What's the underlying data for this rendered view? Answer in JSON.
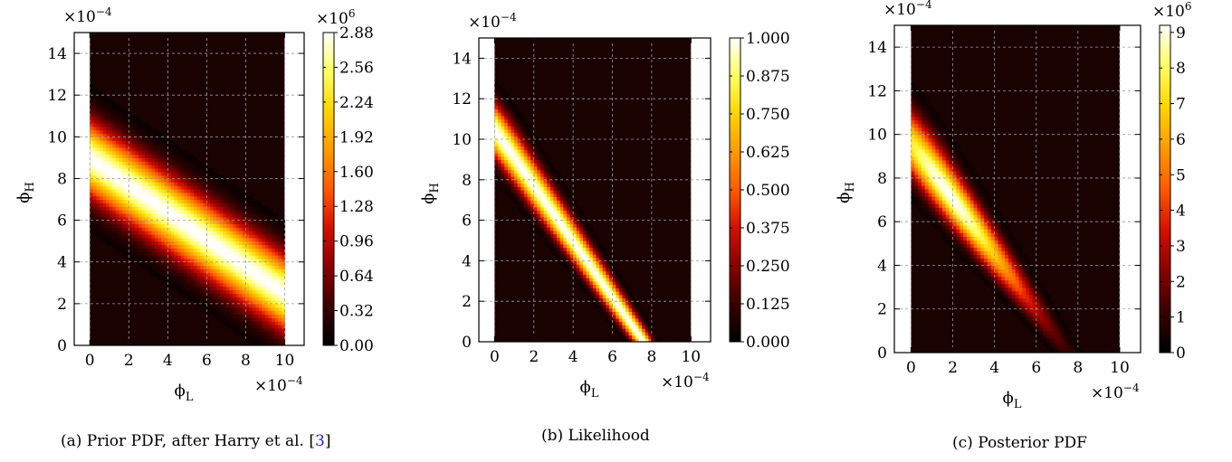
{
  "colors": {
    "background": "#1a0200",
    "colormap": [
      "#000000",
      "#3a0000",
      "#8a0000",
      "#d41000",
      "#ff5a00",
      "#ff9a00",
      "#ffd400",
      "#ffff60",
      "#ffffff"
    ]
  },
  "chart_data": [
    {
      "type": "heatmap",
      "caption": {
        "prefix": "(a) Prior PDF, after Harry et al. [",
        "ref": "3",
        "suffix": "]"
      },
      "xlabel": "ϕL",
      "ylabel": "ϕH",
      "x_multiplier": "×10−4",
      "y_multiplier": "×10−4",
      "xlim": [
        -0.8,
        11
      ],
      "ylim": [
        0,
        15
      ],
      "xticks": [
        0,
        2,
        4,
        6,
        8,
        10
      ],
      "yticks": [
        0,
        2,
        4,
        6,
        8,
        10,
        12,
        14
      ],
      "data_xrange": [
        0,
        10
      ],
      "field": {
        "kind": "band",
        "x0": 0,
        "y0": 9,
        "x1": 10,
        "y1": 2.5,
        "width": 2.1,
        "taper": 0
      },
      "colorbar": {
        "multiplier": "×10⁶",
        "min": 0,
        "max": 2.88,
        "ticks": [
          "0.00",
          "0.32",
          "0.64",
          "0.96",
          "1.28",
          "1.60",
          "1.92",
          "2.24",
          "2.56",
          "2.88"
        ]
      }
    },
    {
      "type": "heatmap",
      "caption": {
        "prefix": "(b) Likelihood",
        "ref": "",
        "suffix": ""
      },
      "xlabel": "ϕL",
      "ylabel": "ϕH",
      "x_multiplier": "×10−4",
      "y_multiplier": "×10−4",
      "xlim": [
        -0.8,
        11
      ],
      "ylim": [
        0,
        15
      ],
      "xticks": [
        0,
        2,
        4,
        6,
        8,
        10
      ],
      "yticks": [
        0,
        2,
        4,
        6,
        8,
        10,
        12,
        14
      ],
      "data_xrange": [
        0,
        10
      ],
      "field": {
        "kind": "band",
        "x0": 0,
        "y0": 10.5,
        "x1": 7.6,
        "y1": 0,
        "width": 1.1,
        "taper": 0.5
      },
      "colorbar": {
        "multiplier": "",
        "min": 0,
        "max": 1.0,
        "ticks": [
          "0.000",
          "0.125",
          "0.250",
          "0.375",
          "0.500",
          "0.625",
          "0.750",
          "0.875",
          "1.000"
        ]
      }
    },
    {
      "type": "heatmap",
      "caption": {
        "prefix": "(c) Posterior PDF",
        "ref": "",
        "suffix": ""
      },
      "xlabel": "ϕL",
      "ylabel": "ϕH",
      "x_multiplier": "×10−4",
      "y_multiplier": "×10−4",
      "xlim": [
        -0.8,
        11
      ],
      "ylim": [
        0,
        15
      ],
      "xticks": [
        0,
        2,
        4,
        6,
        8,
        10
      ],
      "yticks": [
        0,
        2,
        4,
        6,
        8,
        10,
        12,
        14
      ],
      "data_xrange": [
        0,
        10
      ],
      "field": {
        "kind": "posterior",
        "x0": 0,
        "y0": 9.6,
        "x1": 7.6,
        "y1": 0,
        "width": 1.3,
        "peak_x": 1.8,
        "spread": 2.8
      },
      "colorbar": {
        "multiplier": "×10⁶",
        "min": 0,
        "max": 9.2,
        "ticks": [
          "0",
          "1",
          "2",
          "3",
          "4",
          "5",
          "6",
          "7",
          "8",
          "9"
        ]
      }
    }
  ]
}
